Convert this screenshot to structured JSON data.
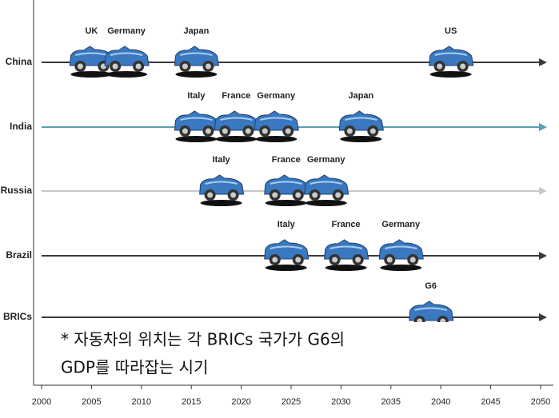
{
  "chart_data": {
    "type": "timeline",
    "xlim": [
      2000,
      2050
    ],
    "xticks": [
      2000,
      2005,
      2010,
      2015,
      2020,
      2025,
      2030,
      2035,
      2040,
      2045,
      2050
    ],
    "series": [
      {
        "name": "China",
        "color": "#3a3a3a",
        "labels": [
          "UK",
          "Germany",
          "Japan",
          "US"
        ],
        "values": [
          2005,
          2008.5,
          2015.5,
          2041
        ]
      },
      {
        "name": "India",
        "color": "#5b9db0",
        "labels": [
          "Italy",
          "France",
          "Germany",
          "Japan"
        ],
        "values": [
          2015.5,
          2019.5,
          2023.5,
          2032
        ]
      },
      {
        "name": "Russia",
        "color": "#c8c8c8",
        "labels": [
          "Italy",
          "France",
          "Germany"
        ],
        "values": [
          2018,
          2024.5,
          2028.5
        ]
      },
      {
        "name": "Brazil",
        "color": "#3a3a3a",
        "labels": [
          "Italy",
          "France",
          "Germany"
        ],
        "values": [
          2024.5,
          2030.5,
          2036
        ]
      },
      {
        "name": "BRICs",
        "color": "#3a3a3a",
        "labels": [
          "G6"
        ],
        "values": [
          2039
        ]
      }
    ],
    "note": [
      "* 자동차의 위치는 각 BRICs 국가가 G6의",
      "GDP를 따라잡는 시기"
    ]
  }
}
